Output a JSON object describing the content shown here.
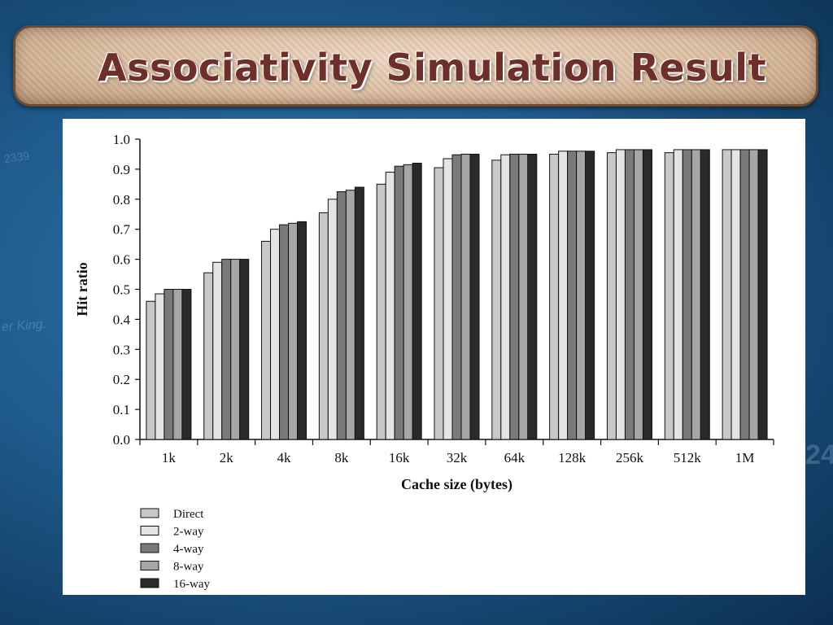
{
  "slide": {
    "title": "Associativity Simulation Result"
  },
  "colors": {
    "Direct": "#c8c8c8",
    "2-way": "#e4e4e4",
    "4-way": "#7a7a7a",
    "8-way": "#a6a6a6",
    "16-way": "#2a2a2a"
  },
  "chart_data": {
    "type": "bar",
    "xlabel": "Cache size (bytes)",
    "ylabel": "Hit ratio",
    "ylim": [
      0.0,
      1.0
    ],
    "yticks": [
      "0.0",
      "0.1",
      "0.2",
      "0.3",
      "0.4",
      "0.5",
      "0.6",
      "0.7",
      "0.8",
      "0.9",
      "1.0"
    ],
    "categories": [
      "1k",
      "2k",
      "4k",
      "8k",
      "16k",
      "32k",
      "64k",
      "128k",
      "256k",
      "512k",
      "1M"
    ],
    "legend_position": "bottom-left",
    "series": [
      {
        "name": "Direct",
        "values": [
          0.46,
          0.555,
          0.66,
          0.755,
          0.85,
          0.905,
          0.93,
          0.95,
          0.955,
          0.955,
          0.965
        ]
      },
      {
        "name": "2-way",
        "values": [
          0.485,
          0.59,
          0.7,
          0.8,
          0.89,
          0.935,
          0.948,
          0.96,
          0.965,
          0.965,
          0.965
        ]
      },
      {
        "name": "4-way",
        "values": [
          0.5,
          0.6,
          0.715,
          0.825,
          0.91,
          0.948,
          0.95,
          0.96,
          0.965,
          0.965,
          0.965
        ]
      },
      {
        "name": "8-way",
        "values": [
          0.5,
          0.6,
          0.72,
          0.83,
          0.915,
          0.95,
          0.95,
          0.96,
          0.965,
          0.965,
          0.965
        ]
      },
      {
        "name": "16-way",
        "values": [
          0.5,
          0.6,
          0.725,
          0.84,
          0.92,
          0.95,
          0.95,
          0.96,
          0.965,
          0.965,
          0.965
        ]
      }
    ]
  }
}
